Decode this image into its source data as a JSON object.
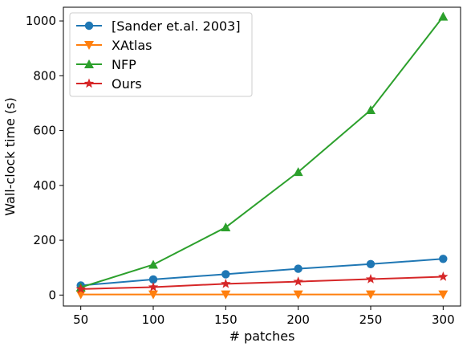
{
  "chart_data": {
    "type": "line",
    "title": "",
    "xlabel": "# patches",
    "ylabel": "Wall-clock time (s)",
    "x": [
      50,
      100,
      150,
      200,
      250,
      300
    ],
    "xlim": [
      38,
      312
    ],
    "ylim": [
      -40,
      1050
    ],
    "xticks": [
      50,
      100,
      150,
      200,
      250,
      300
    ],
    "yticks": [
      0,
      200,
      400,
      600,
      800,
      1000
    ],
    "grid": false,
    "legend_position": "top-left",
    "series": [
      {
        "name": "[Sander et.al. 2003]",
        "color": "#1f77b4",
        "marker": "circle",
        "values": [
          35,
          57,
          76,
          96,
          113,
          132
        ]
      },
      {
        "name": "XAtlas",
        "color": "#ff7f0e",
        "marker": "triangle-down",
        "values": [
          2,
          2,
          2,
          2,
          2,
          2
        ]
      },
      {
        "name": "NFP",
        "color": "#2ca02c",
        "marker": "triangle-up",
        "values": [
          28,
          111,
          247,
          449,
          675,
          1016
        ]
      },
      {
        "name": "Ours",
        "color": "#d62728",
        "marker": "star",
        "values": [
          22,
          29,
          41,
          49,
          58,
          67
        ]
      }
    ]
  }
}
